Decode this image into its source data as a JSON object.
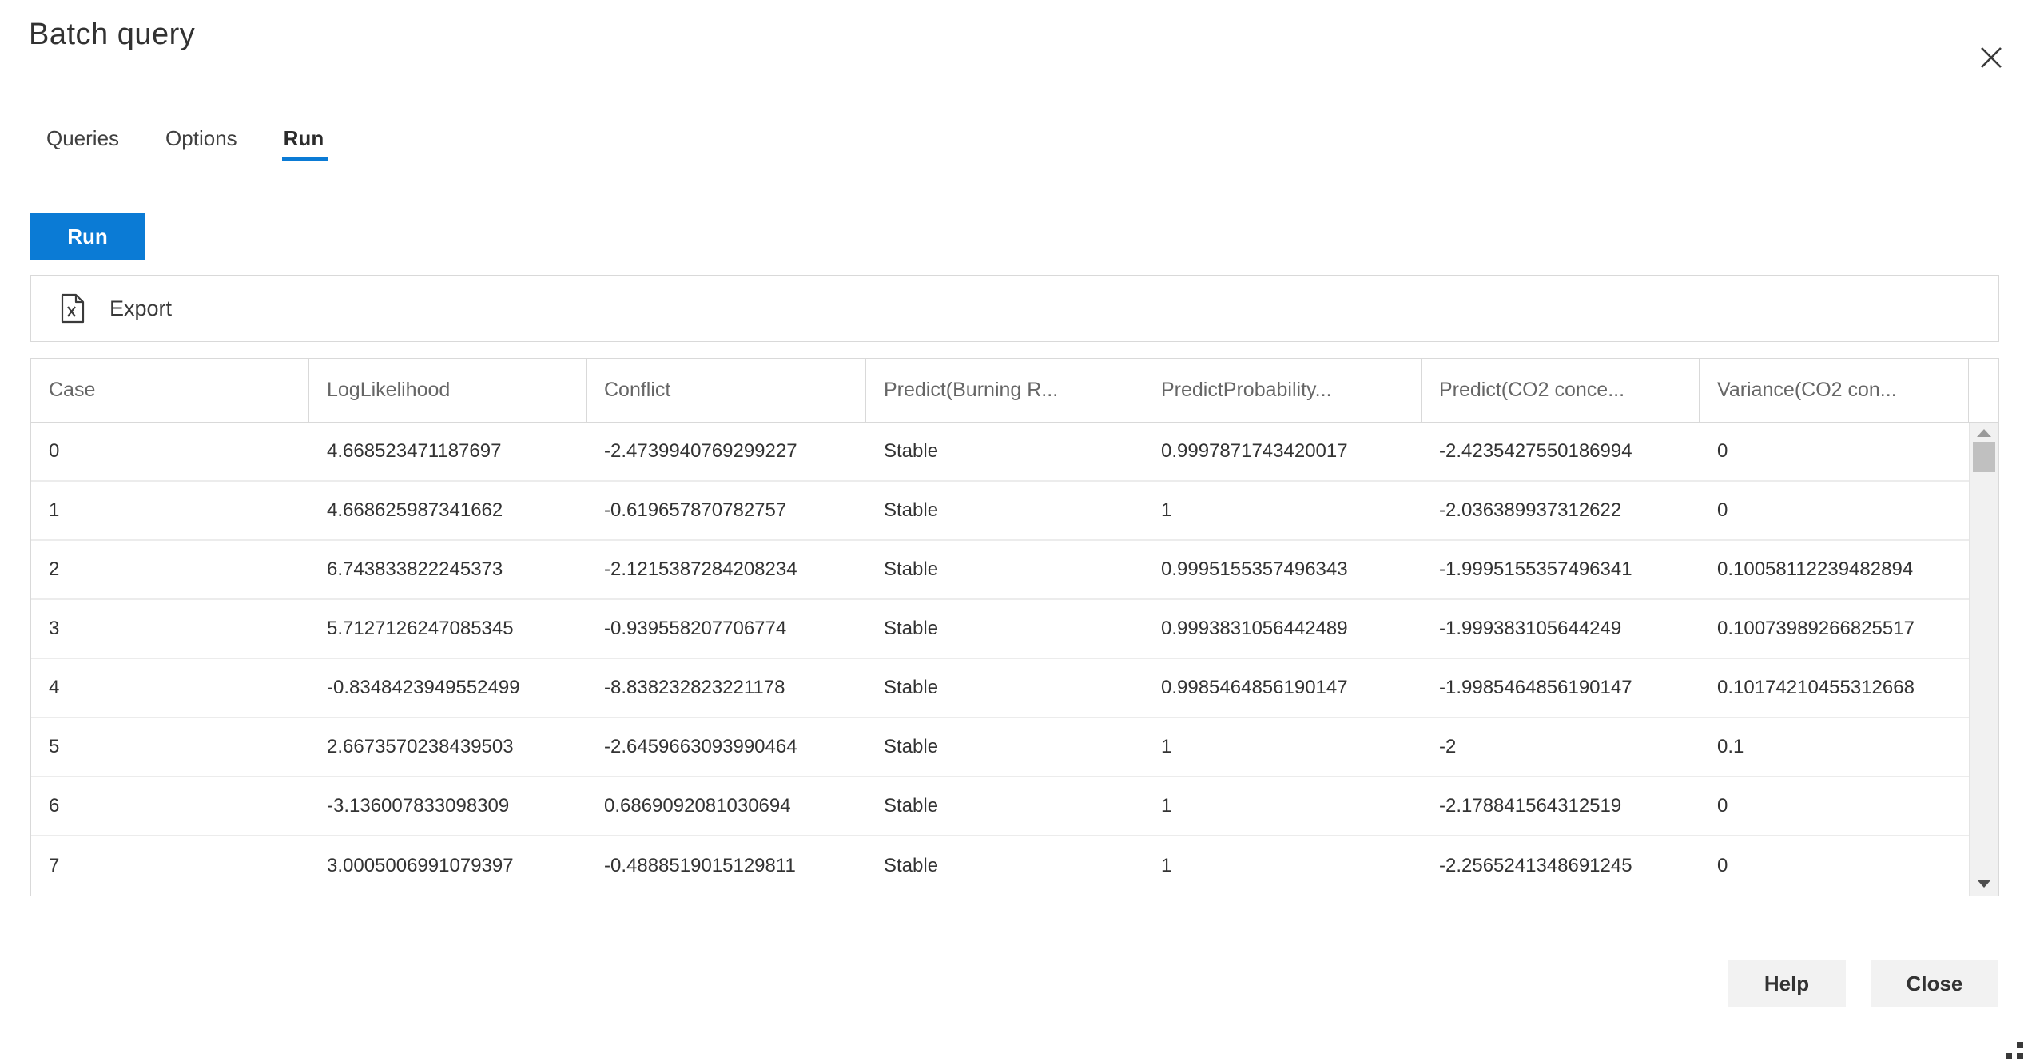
{
  "dialog": {
    "title": "Batch query"
  },
  "tabs": [
    {
      "label": "Queries",
      "active": false
    },
    {
      "label": "Options",
      "active": false
    },
    {
      "label": "Run",
      "active": true
    }
  ],
  "toolbar": {
    "run_label": "Run",
    "export_label": "Export"
  },
  "table": {
    "columns": [
      "Case",
      "LogLikelihood",
      "Conflict",
      "Predict(Burning R...",
      "PredictProbability...",
      "Predict(CO2 conce...",
      "Variance(CO2 con..."
    ],
    "rows": [
      [
        "0",
        "4.668523471187697",
        "-2.4739940769299227",
        "Stable",
        "0.9997871743420017",
        "-2.4235427550186994",
        "0"
      ],
      [
        "1",
        "4.668625987341662",
        "-0.619657870782757",
        "Stable",
        "1",
        "-2.036389937312622",
        "0"
      ],
      [
        "2",
        "6.743833822245373",
        "-2.1215387284208234",
        "Stable",
        "0.9995155357496343",
        "-1.9995155357496341",
        "0.10058112239482894"
      ],
      [
        "3",
        "5.7127126247085345",
        "-0.939558207706774",
        "Stable",
        "0.9993831056442489",
        "-1.999383105644249",
        "0.10073989266825517"
      ],
      [
        "4",
        "-0.8348423949552499",
        "-8.838232823221178",
        "Stable",
        "0.9985464856190147",
        "-1.9985464856190147",
        "0.10174210455312668"
      ],
      [
        "5",
        "2.6673570238439503",
        "-2.6459663093990464",
        "Stable",
        "1",
        "-2",
        "0.1"
      ],
      [
        "6",
        "-3.136007833098309",
        "0.6869092081030694",
        "Stable",
        "1",
        "-2.178841564312519",
        "0"
      ],
      [
        "7",
        "3.0005006991079397",
        "-0.4888519015129811",
        "Stable",
        "1",
        "-2.2565241348691245",
        "0"
      ]
    ]
  },
  "footer": {
    "help_label": "Help",
    "close_label": "Close"
  },
  "colors": {
    "accent_blue": "#0b7bd5",
    "button_gray": "#f2f2f2",
    "border_gray": "#d9d9d9"
  },
  "icons": {
    "close": "close-x",
    "export": "excel-file",
    "scroll_up": "triangle-up",
    "scroll_down": "triangle-down",
    "resize": "dot-grip"
  }
}
